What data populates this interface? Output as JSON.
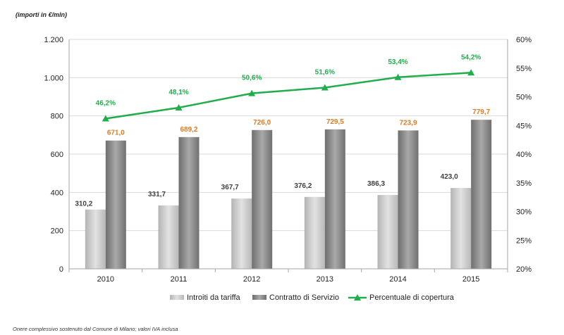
{
  "header": {
    "unit_label": "(importi in €/mln)"
  },
  "footer": {
    "note": "Onere complessivo sostenuto dal Comune di Milano; valori IVA inclusa"
  },
  "colors": {
    "introiti": "#c9c9c9",
    "contratto": "#8c8c8c",
    "percentuale": "#1fae4b",
    "contratto_label": "#e07b22",
    "introiti_label": "#404040",
    "percentuale_label": "#1fae4b"
  },
  "chart_data": {
    "type": "bar",
    "categories": [
      "2010",
      "2011",
      "2012",
      "2013",
      "2014",
      "2015"
    ],
    "series": [
      {
        "name": "Introiti da tariffa",
        "type": "bar",
        "axis": "left",
        "values": [
          310.2,
          331.7,
          367.7,
          376.2,
          386.3,
          423.0
        ],
        "labels": [
          "310,2",
          "331,7",
          "367,7",
          "376,2",
          "386,3",
          "423,0"
        ]
      },
      {
        "name": "Contratto di Servizio",
        "type": "bar",
        "axis": "left",
        "values": [
          671.0,
          689.2,
          726.0,
          729.5,
          723.9,
          779.7
        ],
        "labels": [
          "671,0",
          "689,2",
          "726,0",
          "729,5",
          "723,9",
          "779,7"
        ]
      },
      {
        "name": "Percentuale di copertura",
        "type": "line",
        "axis": "right",
        "values": [
          46.2,
          48.1,
          50.6,
          51.6,
          53.4,
          54.2
        ],
        "labels": [
          "46,2%",
          "48,1%",
          "50,6%",
          "51,6%",
          "53,4%",
          "54,2%"
        ]
      }
    ],
    "y_left": {
      "ylim": [
        0,
        1200
      ],
      "ticks": [
        0,
        200,
        400,
        600,
        800,
        1000,
        1200
      ],
      "tick_labels": [
        "0",
        "200",
        "400",
        "600",
        "800",
        "1.000",
        "1.200"
      ]
    },
    "y_right": {
      "ylim": [
        20,
        60
      ],
      "ticks": [
        20,
        25,
        30,
        35,
        40,
        45,
        50,
        55,
        60
      ],
      "tick_labels": [
        "20%",
        "25%",
        "30%",
        "35%",
        "40%",
        "45%",
        "50%",
        "55%",
        "60%"
      ]
    },
    "grid": true,
    "legend_position": "bottom"
  }
}
